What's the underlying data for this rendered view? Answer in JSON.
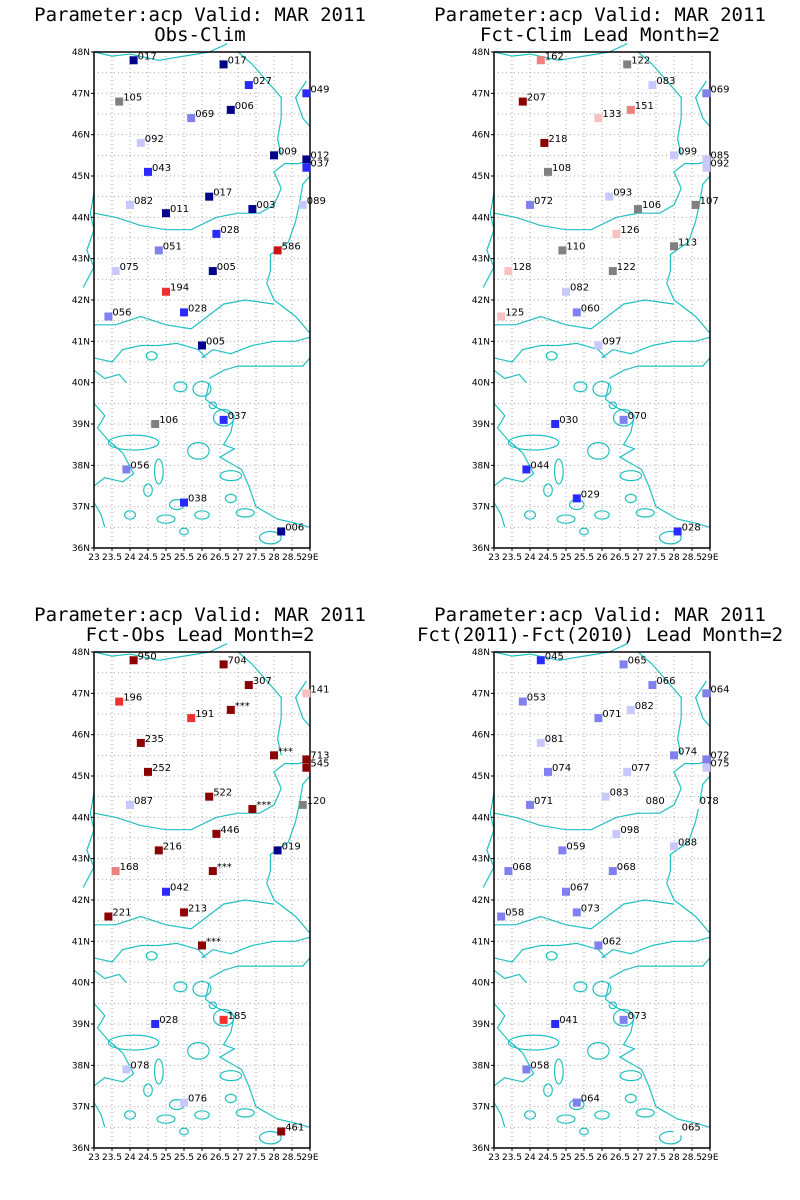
{
  "panels": [
    {
      "title": "Parameter:acp Valid: MAR 2011",
      "subtitle": "Obs-Clim",
      "stations": [
        {
          "lon": 24.1,
          "lat": 47.8,
          "label": "017",
          "color": "#00008b"
        },
        {
          "lon": 26.6,
          "lat": 47.7,
          "label": "017",
          "color": "#00008b"
        },
        {
          "lon": 27.3,
          "lat": 47.2,
          "label": "027",
          "color": "#2a2aff"
        },
        {
          "lon": 28.9,
          "lat": 47.0,
          "label": "049",
          "color": "#2a2aff"
        },
        {
          "lon": 23.7,
          "lat": 46.8,
          "label": "105",
          "color": "#808080"
        },
        {
          "lon": 25.7,
          "lat": 46.4,
          "label": "069",
          "color": "#8080f0"
        },
        {
          "lon": 26.8,
          "lat": 46.6,
          "label": "006",
          "color": "#00008b"
        },
        {
          "lon": 24.3,
          "lat": 45.8,
          "label": "092",
          "color": "#c8c8ff"
        },
        {
          "lon": 28.0,
          "lat": 45.5,
          "label": "009",
          "color": "#00008b"
        },
        {
          "lon": 28.9,
          "lat": 45.4,
          "label": "012",
          "color": "#00008b"
        },
        {
          "lon": 28.9,
          "lat": 45.2,
          "label": "037",
          "color": "#2a2aff"
        },
        {
          "lon": 24.5,
          "lat": 45.1,
          "label": "043",
          "color": "#2a2aff"
        },
        {
          "lon": 26.2,
          "lat": 44.5,
          "label": "017",
          "color": "#00008b"
        },
        {
          "lon": 24.0,
          "lat": 44.3,
          "label": "082",
          "color": "#c8c8ff"
        },
        {
          "lon": 25.0,
          "lat": 44.1,
          "label": "011",
          "color": "#00008b"
        },
        {
          "lon": 27.4,
          "lat": 44.2,
          "label": "003",
          "color": "#00008b"
        },
        {
          "lon": 28.8,
          "lat": 44.3,
          "label": "089",
          "color": "#c8c8ff"
        },
        {
          "lon": 26.4,
          "lat": 43.6,
          "label": "028",
          "color": "#2a2aff"
        },
        {
          "lon": 24.8,
          "lat": 43.2,
          "label": "051",
          "color": "#8080f0"
        },
        {
          "lon": 28.1,
          "lat": 43.2,
          "label": "586",
          "color": "#d01010"
        },
        {
          "lon": 23.6,
          "lat": 42.7,
          "label": "075",
          "color": "#c8c8ff"
        },
        {
          "lon": 26.3,
          "lat": 42.7,
          "label": "005",
          "color": "#00008b"
        },
        {
          "lon": 25.0,
          "lat": 42.2,
          "label": "194",
          "color": "#f03030"
        },
        {
          "lon": 25.5,
          "lat": 41.7,
          "label": "028",
          "color": "#2a2aff"
        },
        {
          "lon": 23.4,
          "lat": 41.6,
          "label": "056",
          "color": "#8080f0"
        },
        {
          "lon": 26.0,
          "lat": 40.9,
          "label": "005",
          "color": "#00008b"
        },
        {
          "lon": 24.7,
          "lat": 39.0,
          "label": "106",
          "color": "#808080"
        },
        {
          "lon": 26.6,
          "lat": 39.1,
          "label": "037",
          "color": "#2a2aff"
        },
        {
          "lon": 23.9,
          "lat": 37.9,
          "label": "056",
          "color": "#8080f0"
        },
        {
          "lon": 25.5,
          "lat": 37.1,
          "label": "038",
          "color": "#2a2aff"
        },
        {
          "lon": 28.2,
          "lat": 36.4,
          "label": "006",
          "color": "#00008b"
        }
      ]
    },
    {
      "title": "Parameter:acp Valid: MAR 2011",
      "subtitle": "Fct-Clim Lead Month=2",
      "stations": [
        {
          "lon": 24.3,
          "lat": 47.8,
          "label": "162",
          "color": "#f08080"
        },
        {
          "lon": 26.7,
          "lat": 47.7,
          "label": "122",
          "color": "#808080"
        },
        {
          "lon": 27.4,
          "lat": 47.2,
          "label": "083",
          "color": "#c8c8ff"
        },
        {
          "lon": 28.9,
          "lat": 47.0,
          "label": "069",
          "color": "#8080f0"
        },
        {
          "lon": 23.8,
          "lat": 46.8,
          "label": "207",
          "color": "#8b0000"
        },
        {
          "lon": 25.9,
          "lat": 46.4,
          "label": "133",
          "color": "#f8c0c0"
        },
        {
          "lon": 26.8,
          "lat": 46.6,
          "label": "151",
          "color": "#f08080"
        },
        {
          "lon": 24.4,
          "lat": 45.8,
          "label": "218",
          "color": "#8b0000"
        },
        {
          "lon": 28.0,
          "lat": 45.5,
          "label": "099",
          "color": "#c8c8ff"
        },
        {
          "lon": 28.9,
          "lat": 45.4,
          "label": "085",
          "color": "#c8c8ff"
        },
        {
          "lon": 28.9,
          "lat": 45.2,
          "label": "092",
          "color": "#c8c8ff"
        },
        {
          "lon": 24.5,
          "lat": 45.1,
          "label": "108",
          "color": "#808080"
        },
        {
          "lon": 26.2,
          "lat": 44.5,
          "label": "093",
          "color": "#c8c8ff"
        },
        {
          "lon": 24.0,
          "lat": 44.3,
          "label": "072",
          "color": "#8080f0"
        },
        {
          "lon": 27.0,
          "lat": 44.2,
          "label": "106",
          "color": "#808080"
        },
        {
          "lon": 28.6,
          "lat": 44.3,
          "label": "107",
          "color": "#808080"
        },
        {
          "lon": 26.4,
          "lat": 43.6,
          "label": "126",
          "color": "#f8c0c0"
        },
        {
          "lon": 24.9,
          "lat": 43.2,
          "label": "110",
          "color": "#808080"
        },
        {
          "lon": 28.0,
          "lat": 43.3,
          "label": "113",
          "color": "#808080"
        },
        {
          "lon": 23.4,
          "lat": 42.7,
          "label": "128",
          "color": "#f8c0c0"
        },
        {
          "lon": 26.3,
          "lat": 42.7,
          "label": "122",
          "color": "#808080"
        },
        {
          "lon": 25.0,
          "lat": 42.2,
          "label": "082",
          "color": "#c8c8ff"
        },
        {
          "lon": 25.3,
          "lat": 41.7,
          "label": "060",
          "color": "#8080f0"
        },
        {
          "lon": 23.2,
          "lat": 41.6,
          "label": "125",
          "color": "#f8c0c0"
        },
        {
          "lon": 25.9,
          "lat": 40.9,
          "label": "097",
          "color": "#c8c8ff"
        },
        {
          "lon": 24.7,
          "lat": 39.0,
          "label": "030",
          "color": "#2a2aff"
        },
        {
          "lon": 26.6,
          "lat": 39.1,
          "label": "070",
          "color": "#8080f0"
        },
        {
          "lon": 23.9,
          "lat": 37.9,
          "label": "044",
          "color": "#2a2aff"
        },
        {
          "lon": 25.3,
          "lat": 37.2,
          "label": "029",
          "color": "#2a2aff"
        },
        {
          "lon": 28.1,
          "lat": 36.4,
          "label": "028",
          "color": "#2a2aff"
        }
      ]
    },
    {
      "title": "Parameter:acp Valid: MAR 2011",
      "subtitle": "Fct-Obs Lead Month=2",
      "stations": [
        {
          "lon": 24.1,
          "lat": 47.8,
          "label": "950",
          "color": "#8b0000"
        },
        {
          "lon": 26.6,
          "lat": 47.7,
          "label": "704",
          "color": "#8b0000"
        },
        {
          "lon": 27.3,
          "lat": 47.2,
          "label": "307",
          "color": "#8b0000"
        },
        {
          "lon": 28.9,
          "lat": 47.0,
          "label": "141",
          "color": "#f8c0c0"
        },
        {
          "lon": 23.7,
          "lat": 46.8,
          "label": "196",
          "color": "#f03030"
        },
        {
          "lon": 25.7,
          "lat": 46.4,
          "label": "191",
          "color": "#f03030"
        },
        {
          "lon": 26.8,
          "lat": 46.6,
          "label": "***",
          "color": "#8b0000"
        },
        {
          "lon": 24.3,
          "lat": 45.8,
          "label": "235",
          "color": "#8b0000"
        },
        {
          "lon": 28.0,
          "lat": 45.5,
          "label": "***",
          "color": "#8b0000"
        },
        {
          "lon": 28.9,
          "lat": 45.4,
          "label": "713",
          "color": "#8b0000"
        },
        {
          "lon": 28.9,
          "lat": 45.2,
          "label": "545",
          "color": "#8b0000"
        },
        {
          "lon": 24.5,
          "lat": 45.1,
          "label": "252",
          "color": "#8b0000"
        },
        {
          "lon": 26.2,
          "lat": 44.5,
          "label": "522",
          "color": "#8b0000"
        },
        {
          "lon": 24.0,
          "lat": 44.3,
          "label": "087",
          "color": "#c8c8ff"
        },
        {
          "lon": 27.4,
          "lat": 44.2,
          "label": "***",
          "color": "#8b0000"
        },
        {
          "lon": 28.8,
          "lat": 44.3,
          "label": "120",
          "color": "#808080"
        },
        {
          "lon": 26.4,
          "lat": 43.6,
          "label": "446",
          "color": "#8b0000"
        },
        {
          "lon": 24.8,
          "lat": 43.2,
          "label": "216",
          "color": "#8b0000"
        },
        {
          "lon": 28.1,
          "lat": 43.2,
          "label": "019",
          "color": "#00008b"
        },
        {
          "lon": 23.6,
          "lat": 42.7,
          "label": "168",
          "color": "#f08080"
        },
        {
          "lon": 26.3,
          "lat": 42.7,
          "label": "***",
          "color": "#8b0000"
        },
        {
          "lon": 25.0,
          "lat": 42.2,
          "label": "042",
          "color": "#2a2aff"
        },
        {
          "lon": 25.5,
          "lat": 41.7,
          "label": "213",
          "color": "#8b0000"
        },
        {
          "lon": 23.4,
          "lat": 41.6,
          "label": "221",
          "color": "#8b0000"
        },
        {
          "lon": 26.0,
          "lat": 40.9,
          "label": "***",
          "color": "#8b0000"
        },
        {
          "lon": 24.7,
          "lat": 39.0,
          "label": "028",
          "color": "#2a2aff"
        },
        {
          "lon": 26.6,
          "lat": 39.1,
          "label": "185",
          "color": "#f03030"
        },
        {
          "lon": 23.9,
          "lat": 37.9,
          "label": "078",
          "color": "#c8c8ff"
        },
        {
          "lon": 25.5,
          "lat": 37.1,
          "label": "076",
          "color": "#c8c8ff"
        },
        {
          "lon": 28.2,
          "lat": 36.4,
          "label": "461",
          "color": "#8b0000"
        }
      ]
    },
    {
      "title": "Parameter:acp Valid: MAR 2011",
      "subtitle": "Fct(2011)-Fct(2010) Lead Month=2",
      "stations": [
        {
          "lon": 24.3,
          "lat": 47.8,
          "label": "045",
          "color": "#2a2aff"
        },
        {
          "lon": 26.6,
          "lat": 47.7,
          "label": "065",
          "color": "#8080f0"
        },
        {
          "lon": 27.4,
          "lat": 47.2,
          "label": "066",
          "color": "#8080f0"
        },
        {
          "lon": 28.9,
          "lat": 47.0,
          "label": "064",
          "color": "#8080f0"
        },
        {
          "lon": 23.8,
          "lat": 46.8,
          "label": "053",
          "color": "#8080f0"
        },
        {
          "lon": 25.9,
          "lat": 46.4,
          "label": "071",
          "color": "#8080f0"
        },
        {
          "lon": 26.8,
          "lat": 46.6,
          "label": "082",
          "color": "#c8c8ff"
        },
        {
          "lon": 24.3,
          "lat": 45.8,
          "label": "081",
          "color": "#c8c8ff"
        },
        {
          "lon": 28.0,
          "lat": 45.5,
          "label": "074",
          "color": "#8080f0"
        },
        {
          "lon": 28.9,
          "lat": 45.4,
          "label": "072",
          "color": "#8080f0"
        },
        {
          "lon": 28.9,
          "lat": 45.2,
          "label": "075",
          "color": "#c8c8ff"
        },
        {
          "lon": 24.5,
          "lat": 45.1,
          "label": "074",
          "color": "#8080f0"
        },
        {
          "lon": 26.7,
          "lat": 45.1,
          "label": "077",
          "color": "#c8c8ff"
        },
        {
          "lon": 26.1,
          "lat": 44.5,
          "label": "083",
          "color": "#c8c8ff"
        },
        {
          "lon": 24.0,
          "lat": 44.3,
          "label": "071",
          "color": "#8080f0"
        },
        {
          "lon": 27.1,
          "lat": 44.3,
          "label": "080",
          "color": "#ffffff"
        },
        {
          "lon": 28.6,
          "lat": 44.3,
          "label": "078",
          "color": "#ffffff"
        },
        {
          "lon": 26.4,
          "lat": 43.6,
          "label": "098",
          "color": "#c8c8ff"
        },
        {
          "lon": 24.9,
          "lat": 43.2,
          "label": "059",
          "color": "#8080f0"
        },
        {
          "lon": 28.0,
          "lat": 43.3,
          "label": "088",
          "color": "#c8c8ff"
        },
        {
          "lon": 23.4,
          "lat": 42.7,
          "label": "068",
          "color": "#8080f0"
        },
        {
          "lon": 26.3,
          "lat": 42.7,
          "label": "068",
          "color": "#8080f0"
        },
        {
          "lon": 25.0,
          "lat": 42.2,
          "label": "067",
          "color": "#8080f0"
        },
        {
          "lon": 25.3,
          "lat": 41.7,
          "label": "073",
          "color": "#8080f0"
        },
        {
          "lon": 23.2,
          "lat": 41.6,
          "label": "058",
          "color": "#8080f0"
        },
        {
          "lon": 25.9,
          "lat": 40.9,
          "label": "062",
          "color": "#8080f0"
        },
        {
          "lon": 24.7,
          "lat": 39.0,
          "label": "041",
          "color": "#2a2aff"
        },
        {
          "lon": 26.6,
          "lat": 39.1,
          "label": "073",
          "color": "#8080f0"
        },
        {
          "lon": 23.9,
          "lat": 37.9,
          "label": "058",
          "color": "#8080f0"
        },
        {
          "lon": 25.3,
          "lat": 37.1,
          "label": "064",
          "color": "#8080f0"
        },
        {
          "lon": 28.1,
          "lat": 36.4,
          "label": "065",
          "color": "#ffffff"
        }
      ]
    }
  ],
  "axes": {
    "lat_min": 36,
    "lat_max": 48,
    "lon_min": 23,
    "lon_max": 29,
    "lat_ticks": [
      "36N",
      "37N",
      "38N",
      "39N",
      "40N",
      "41N",
      "42N",
      "43N",
      "44N",
      "45N",
      "46N",
      "47N",
      "48N"
    ],
    "lon_ticks": [
      "23",
      "23.5",
      "24",
      "24.5",
      "25",
      "25.5",
      "26",
      "26.5",
      "27",
      "27.5",
      "28",
      "28.5",
      "29E"
    ],
    "grid": "dotted",
    "coast_color": "#20c0c0"
  }
}
